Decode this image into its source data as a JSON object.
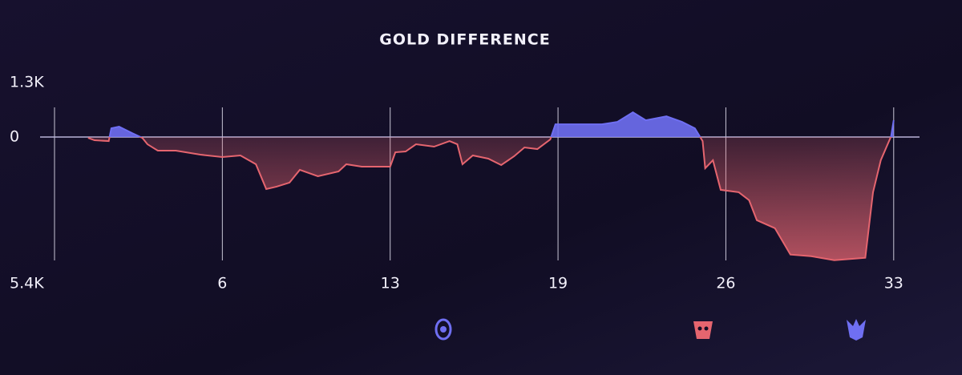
{
  "chart_data": {
    "type": "area",
    "title": "GOLD DIFFERENCE",
    "x": [
      1.3,
      1.55,
      2.1,
      2.2,
      2.5,
      3.0,
      3.4,
      3.6,
      4.0,
      4.7,
      5.65,
      6.5,
      7.2,
      7.8,
      8.2,
      8.6,
      9.1,
      9.5,
      10.2,
      11.0,
      11.3,
      11.9,
      13.0,
      13.2,
      13.6,
      14.0,
      14.7,
      15.3,
      15.6,
      15.8,
      16.2,
      16.8,
      17.3,
      17.8,
      18.2,
      18.7,
      19.2,
      19.4,
      20.3,
      21.2,
      21.8,
      22.4,
      22.9,
      23.7,
      24.3,
      24.8,
      25.1,
      25.2,
      25.5,
      25.8,
      26.5,
      26.9,
      27.2,
      27.9,
      28.5,
      29.3,
      30.2,
      31.0,
      31.4,
      31.7,
      32.0,
      32.4,
      32.5
    ],
    "values": [
      -35,
      -140,
      -175,
      385,
      455,
      175,
      -35,
      -315,
      -595,
      -595,
      -770,
      -875,
      -805,
      -1190,
      -2275,
      -2170,
      -1995,
      -1435,
      -1715,
      -1505,
      -1190,
      -1295,
      -1295,
      -665,
      -630,
      -315,
      -420,
      -175,
      -315,
      -1190,
      -805,
      -945,
      -1225,
      -840,
      -455,
      -525,
      -105,
      560,
      560,
      560,
      665,
      1085,
      735,
      910,
      665,
      385,
      -175,
      -1365,
      -1015,
      -2310,
      -2415,
      -2765,
      -3640,
      -3990,
      -5145,
      -5215,
      -5390,
      -5320,
      -5285,
      -2415,
      -1015,
      35,
      735
    ],
    "colors": {
      "positive": "#6f6ff2",
      "negative": "#e5656f"
    },
    "xlim": [
      0,
      33.5
    ],
    "xticks": [
      {
        "value": 6.5,
        "label": "6"
      },
      13,
      {
        "value": 19.5,
        "label": "19"
      },
      26,
      {
        "value": 32.5,
        "label": "33"
      }
    ],
    "ylim": [
      -5400,
      1300
    ],
    "yticks": [
      {
        "value": 1300,
        "label": "1.3K"
      },
      0,
      {
        "value": -5400,
        "label": "5.4K"
      }
    ],
    "grid": true
  }
}
